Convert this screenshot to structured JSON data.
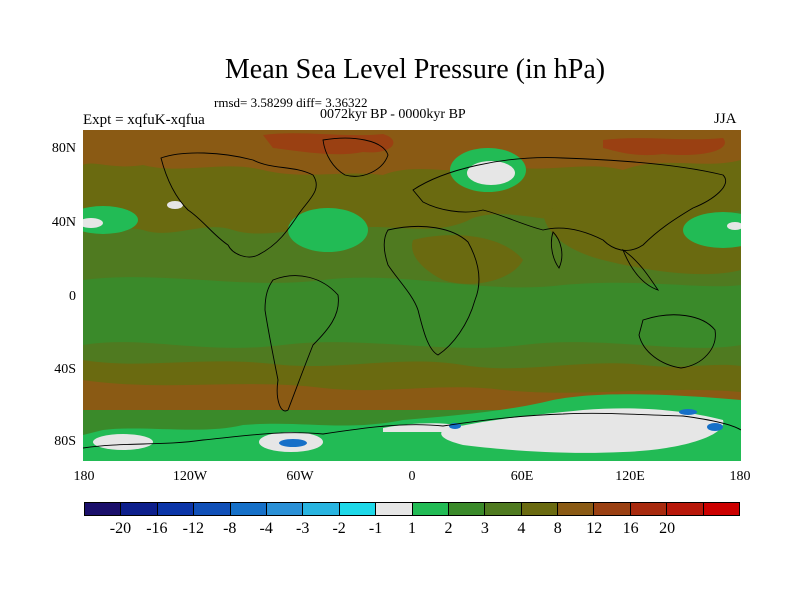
{
  "title": "Mean Sea Level Pressure (in hPa)",
  "stats": "rmsd= 3.58299 diff= 3.36322",
  "period": "0072kyr BP - 0000kyr BP",
  "experiment": "Expt = xqfuK-xqfua",
  "season": "JJA",
  "y_axis": [
    "80N",
    "40N",
    "0",
    "40S",
    "80S"
  ],
  "x_axis": [
    "180",
    "120W",
    "60W",
    "0",
    "60E",
    "120E",
    "180"
  ],
  "colorbar": {
    "colors": [
      "#1a0f6b",
      "#0d1f8c",
      "#0b35a8",
      "#1050b8",
      "#1670c8",
      "#2a90d6",
      "#28b4e0",
      "#1ed8e8",
      "#e6e6e6",
      "#22bb55",
      "#3a8a2a",
      "#4f7a20",
      "#6a6a10",
      "#8a5a14",
      "#9a4012",
      "#a82a0e",
      "#b8180a",
      "#cc0000"
    ],
    "labels": [
      "-20",
      "-16",
      "-12",
      "-8",
      "-4",
      "-3",
      "-2",
      "-1",
      "1",
      "2",
      "3",
      "4",
      "8",
      "12",
      "16",
      "20"
    ]
  },
  "map_colors": {
    "base": "#4f7a20",
    "brown": "#6a6a10",
    "darkbrown": "#8a5a14",
    "red": "#9a4012",
    "green": "#3a8a2a",
    "brightgreen": "#22bb55",
    "white": "#e6e6e6",
    "blue": "#1670c8"
  }
}
